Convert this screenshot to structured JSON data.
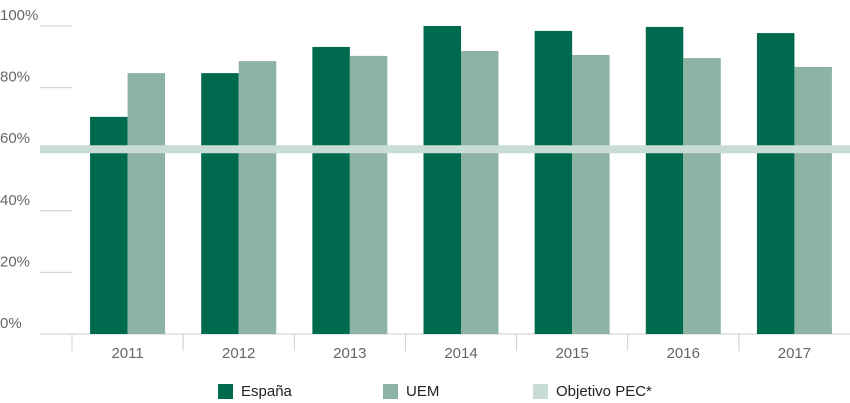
{
  "chart_data": {
    "type": "bar",
    "categories": [
      "2011",
      "2012",
      "2013",
      "2014",
      "2015",
      "2016",
      "2017"
    ],
    "series": [
      {
        "name": "España",
        "color": "#006a4e",
        "values": [
          70.5,
          84.7,
          93.2,
          100,
          98.4,
          99.7,
          97.7
        ]
      },
      {
        "name": "UEM",
        "color": "#8db3a5",
        "values": [
          84.7,
          88.6,
          90.3,
          91.9,
          90.6,
          89.6,
          86.7
        ]
      }
    ],
    "reference_line": {
      "name": "Objetivo PEC*",
      "value": 60,
      "color": "#c8ddd4"
    },
    "ylim": [
      0,
      100
    ],
    "yticks": [
      {
        "value": 0,
        "label": "0%"
      },
      {
        "value": 20,
        "label": "20%"
      },
      {
        "value": 40,
        "label": "40%"
      },
      {
        "value": 60,
        "label": "60%"
      },
      {
        "value": 80,
        "label": "80%"
      },
      {
        "value": 100,
        "label": "100%"
      }
    ],
    "legend": "bottom"
  }
}
